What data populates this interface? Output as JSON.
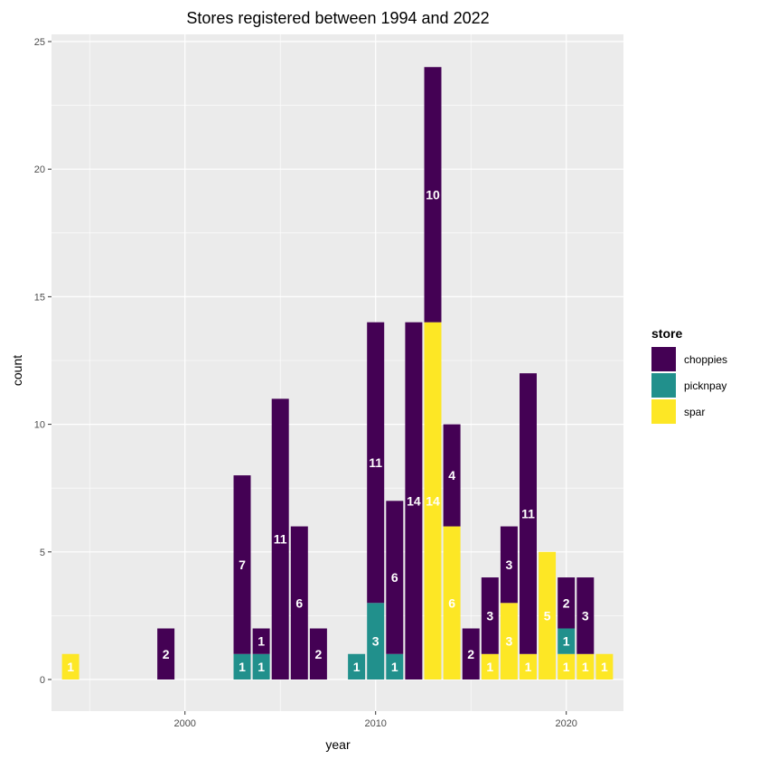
{
  "chart_data": {
    "type": "bar",
    "stacked": true,
    "title": "Stores registered between 1994 and 2022",
    "xlabel": "year",
    "ylabel": "count",
    "xlim": [
      1993,
      2023
    ],
    "ylim": [
      0,
      25
    ],
    "x_ticks": [
      2000,
      2010,
      2020
    ],
    "y_ticks": [
      0,
      5,
      10,
      15,
      20,
      25
    ],
    "grid": true,
    "legend_title": "store",
    "legend_position": "right",
    "series": [
      {
        "name": "choppies",
        "color": "#440154",
        "points": [
          {
            "x": 1999,
            "y": 2
          },
          {
            "x": 2003,
            "y": 7
          },
          {
            "x": 2004,
            "y": 1
          },
          {
            "x": 2005,
            "y": 11
          },
          {
            "x": 2006,
            "y": 6
          },
          {
            "x": 2007,
            "y": 2
          },
          {
            "x": 2010,
            "y": 11
          },
          {
            "x": 2011,
            "y": 6
          },
          {
            "x": 2012,
            "y": 14
          },
          {
            "x": 2013,
            "y": 10
          },
          {
            "x": 2014,
            "y": 4
          },
          {
            "x": 2015,
            "y": 2
          },
          {
            "x": 2016,
            "y": 3
          },
          {
            "x": 2017,
            "y": 3
          },
          {
            "x": 2018,
            "y": 11
          },
          {
            "x": 2020,
            "y": 2
          },
          {
            "x": 2021,
            "y": 3
          }
        ]
      },
      {
        "name": "picknpay",
        "color": "#21908C",
        "points": [
          {
            "x": 2003,
            "y": 1
          },
          {
            "x": 2004,
            "y": 1
          },
          {
            "x": 2009,
            "y": 1
          },
          {
            "x": 2010,
            "y": 3
          },
          {
            "x": 2011,
            "y": 1
          },
          {
            "x": 2020,
            "y": 1
          }
        ]
      },
      {
        "name": "spar",
        "color": "#FDE725",
        "points": [
          {
            "x": 1994,
            "y": 1
          },
          {
            "x": 2013,
            "y": 14
          },
          {
            "x": 2014,
            "y": 6
          },
          {
            "x": 2016,
            "y": 1
          },
          {
            "x": 2017,
            "y": 3
          },
          {
            "x": 2018,
            "y": 1
          },
          {
            "x": 2019,
            "y": 5
          },
          {
            "x": 2020,
            "y": 1
          },
          {
            "x": 2021,
            "y": 1
          },
          {
            "x": 2022,
            "y": 1
          }
        ]
      }
    ]
  }
}
